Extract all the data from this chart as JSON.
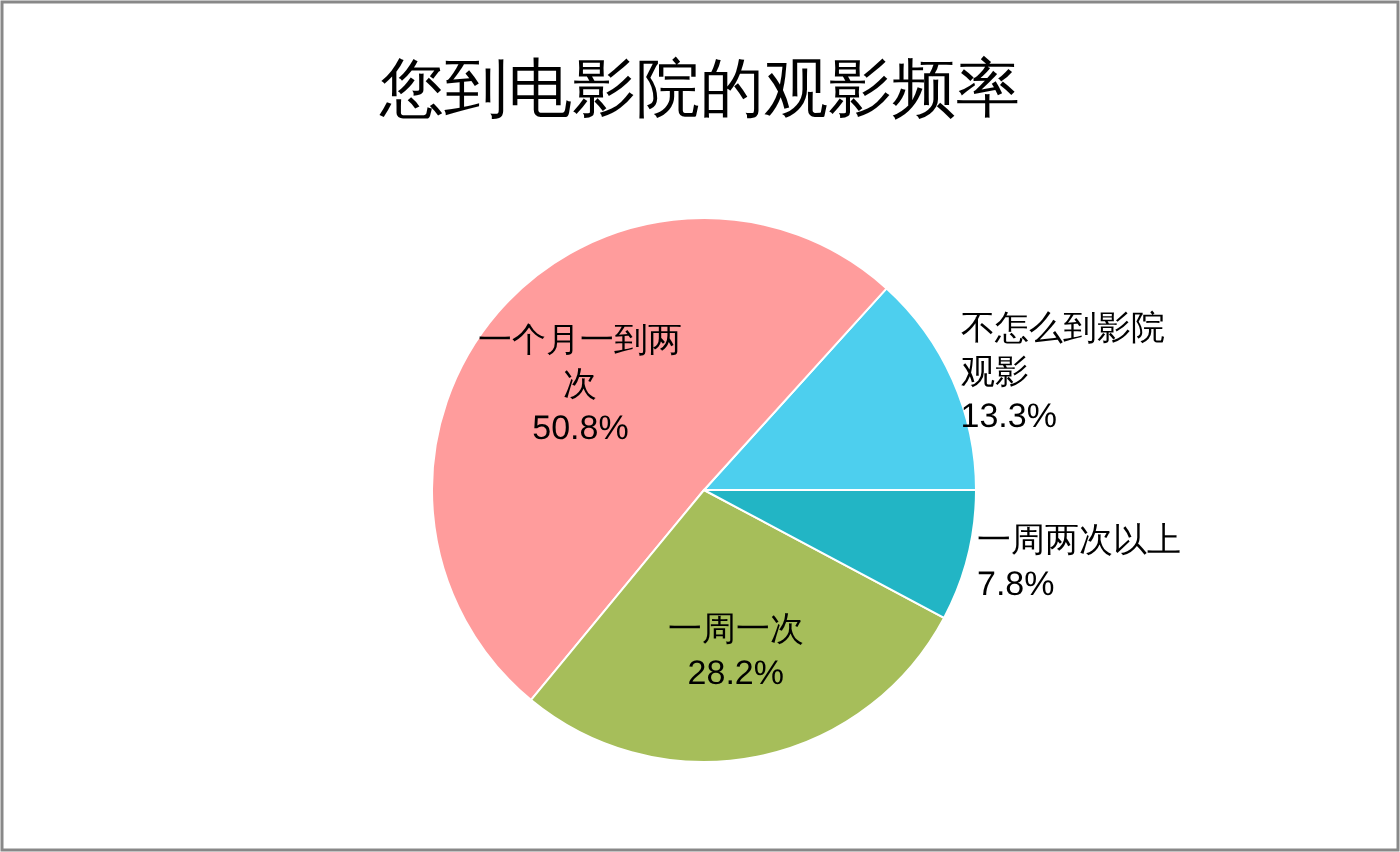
{
  "chart_data": {
    "type": "pie",
    "title": "您到电影院的观影频率",
    "categories": [
      "不怎么到影院观影",
      "一个月一到两次",
      "一周一次",
      "一周两次以上"
    ],
    "values": [
      13.3,
      50.8,
      28.2,
      7.8
    ],
    "colors": [
      "#4dcfee",
      "#ff9c9c",
      "#a6be5a",
      "#22b5c5"
    ],
    "value_labels": [
      "13.3%",
      "50.8%",
      "28.2%",
      "7.8%"
    ]
  }
}
